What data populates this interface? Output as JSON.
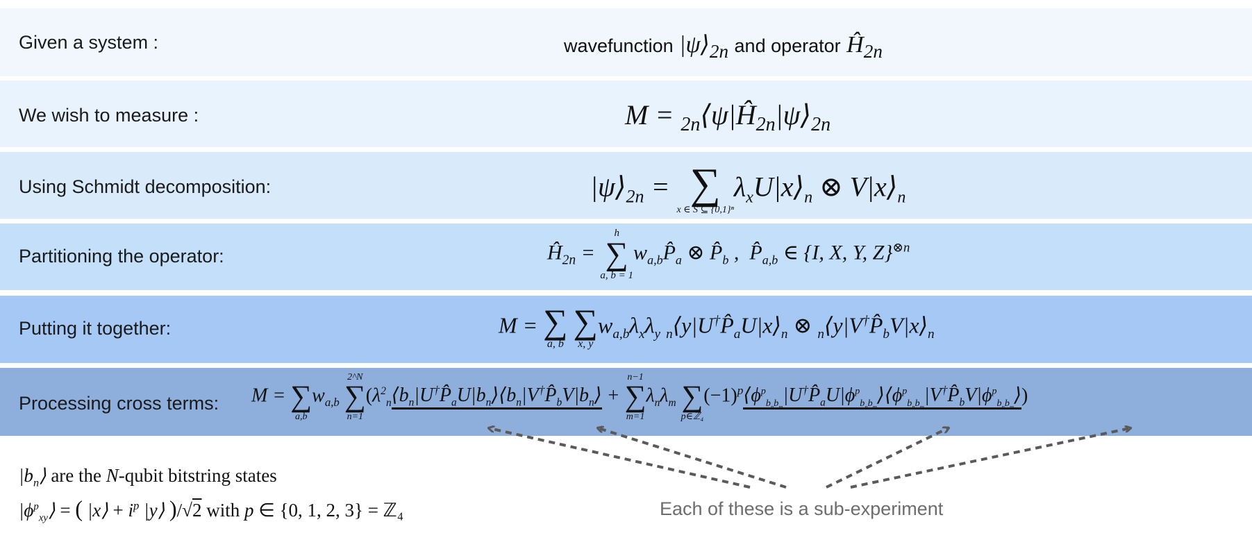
{
  "colors": {
    "band1": "#f2f7fd",
    "band2": "#e9f3fd",
    "band3": "#d9eafb",
    "band4": "#c3dffa",
    "band5": "#a6c8f5",
    "band6": "#8eaedc",
    "arrow": "#5a5a5a"
  },
  "rows": {
    "r1": {
      "label": "Given a system :",
      "text_a": "wavefunction",
      "text_b": "and operator"
    },
    "r2": {
      "label": "We wish to measure :"
    },
    "r3": {
      "label": "Using Schmidt decomposition:",
      "sum_lower": "x ∈ S ⊆ {0,1}ⁿ"
    },
    "r4": {
      "label": "Partitioning the operator:",
      "sum_upper": "h",
      "sum_lower": "a, b = 1",
      "pauli_set": "{I, X, Y, Z}"
    },
    "r5": {
      "label": "Putting it together:",
      "sum1_lower": "a, b",
      "sum2_lower": "x, y"
    },
    "r6": {
      "label": "Processing cross terms:",
      "sum1_lower": "a,b",
      "sum2_upper": "2^N",
      "sum2_lower": "n=1",
      "sum3_upper": "n−1",
      "sum3_lower": "m=1",
      "sum4_lower": "p∈ℤ₄"
    }
  },
  "notes": {
    "line1_text": "are the",
    "line1_tail": "-qubit bitstring states",
    "line2_with": "with",
    "line2_set": "∈ {0, 1, 2, 3} = ℤ₄"
  },
  "annotation": "Each of these is a sub-experiment",
  "icons": {
    "arrows": "dashed-arrow-icon"
  }
}
